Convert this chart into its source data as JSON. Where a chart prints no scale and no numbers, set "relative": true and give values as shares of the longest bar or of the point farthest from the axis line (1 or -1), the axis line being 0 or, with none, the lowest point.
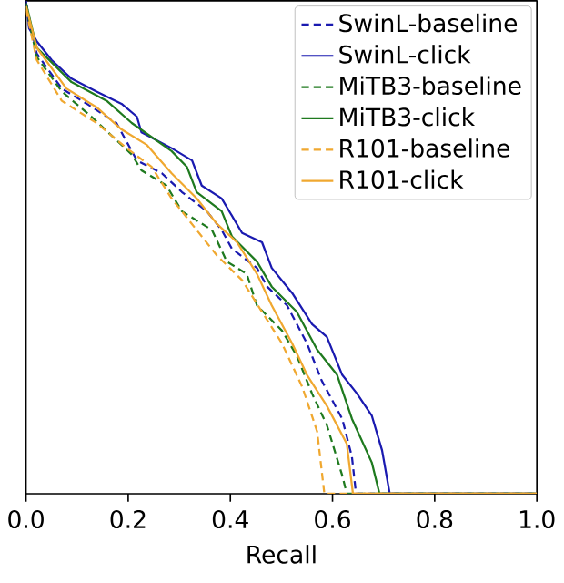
{
  "chart_data": {
    "type": "line",
    "xlabel": "Recall",
    "relative": true,
    "xlim": [
      0,
      1
    ],
    "xticks": [
      {
        "value": 0,
        "label": "0.0"
      },
      0.2,
      0.4,
      0.6,
      0.8,
      {
        "value": 1,
        "label": "1.0"
      }
    ],
    "tick_labels": "x",
    "legend": "top right",
    "marker": "none",
    "series": [
      {
        "name": "SwinL-baseline",
        "color": "#1a1ab0",
        "line_style": "dashed",
        "x": [
          0,
          0.021,
          0.07,
          0.119,
          0.177,
          0.217,
          0.266,
          0.305,
          0.354,
          0.383,
          0.403,
          0.452,
          0.472,
          0.511,
          0.55,
          0.579,
          0.619,
          0.638,
          0.646,
          1.0
        ],
        "values": [
          0.995,
          0.893,
          0.822,
          0.791,
          0.752,
          0.676,
          0.65,
          0.612,
          0.573,
          0.535,
          0.497,
          0.458,
          0.42,
          0.382,
          0.305,
          0.229,
          0.152,
          0.075,
          0,
          0
        ]
      },
      {
        "name": "SwinL-click",
        "color": "#1a1ab0",
        "line_style": "solid",
        "x": [
          0,
          0.006,
          0.021,
          0.05,
          0.089,
          0.138,
          0.187,
          0.217,
          0.226,
          0.285,
          0.325,
          0.344,
          0.383,
          0.423,
          0.462,
          0.481,
          0.521,
          0.56,
          0.589,
          0.619,
          0.648,
          0.677,
          0.697,
          0.712,
          1.0
        ],
        "values": [
          1.0,
          0.944,
          0.918,
          0.88,
          0.842,
          0.816,
          0.791,
          0.765,
          0.733,
          0.701,
          0.676,
          0.625,
          0.599,
          0.529,
          0.51,
          0.458,
          0.407,
          0.344,
          0.318,
          0.241,
          0.203,
          0.158,
          0.088,
          0,
          0
        ]
      },
      {
        "name": "MiTB3-baseline",
        "color": "#1f7a1f",
        "line_style": "dashed",
        "x": [
          0,
          0.021,
          0.07,
          0.128,
          0.207,
          0.226,
          0.275,
          0.305,
          0.364,
          0.393,
          0.432,
          0.452,
          0.501,
          0.53,
          0.56,
          0.589,
          0.619,
          0.628,
          1.0
        ],
        "values": [
          0.989,
          0.886,
          0.816,
          0.765,
          0.688,
          0.656,
          0.625,
          0.573,
          0.535,
          0.471,
          0.446,
          0.382,
          0.331,
          0.28,
          0.203,
          0.139,
          0.037,
          0,
          0
        ]
      },
      {
        "name": "MiTB3-click",
        "color": "#1f7a1f",
        "line_style": "solid",
        "x": [
          0,
          0.021,
          0.089,
          0.158,
          0.207,
          0.285,
          0.315,
          0.334,
          0.383,
          0.403,
          0.452,
          0.481,
          0.53,
          0.57,
          0.609,
          0.638,
          0.677,
          0.692,
          1.0
        ],
        "values": [
          0.995,
          0.905,
          0.835,
          0.797,
          0.752,
          0.695,
          0.663,
          0.612,
          0.573,
          0.522,
          0.471,
          0.42,
          0.369,
          0.292,
          0.241,
          0.152,
          0.063,
          0,
          0
        ]
      },
      {
        "name": "R101-baseline",
        "color": "#f0a830",
        "line_style": "dashed",
        "x": [
          0,
          0.021,
          0.07,
          0.138,
          0.197,
          0.246,
          0.285,
          0.334,
          0.373,
          0.423,
          0.462,
          0.501,
          0.541,
          0.57,
          0.584,
          1.0
        ],
        "values": [
          0.982,
          0.88,
          0.797,
          0.752,
          0.701,
          0.663,
          0.599,
          0.535,
          0.484,
          0.433,
          0.369,
          0.305,
          0.216,
          0.126,
          0,
          0
        ]
      },
      {
        "name": "R101-click",
        "color": "#f0a830",
        "line_style": "solid",
        "x": [
          0,
          0.021,
          0.079,
          0.138,
          0.187,
          0.236,
          0.285,
          0.334,
          0.373,
          0.413,
          0.452,
          0.481,
          0.521,
          0.55,
          0.589,
          0.628,
          0.64,
          1.0
        ],
        "values": [
          0.989,
          0.905,
          0.822,
          0.784,
          0.739,
          0.708,
          0.65,
          0.599,
          0.548,
          0.51,
          0.446,
          0.382,
          0.305,
          0.241,
          0.178,
          0.101,
          0,
          0
        ]
      }
    ]
  }
}
